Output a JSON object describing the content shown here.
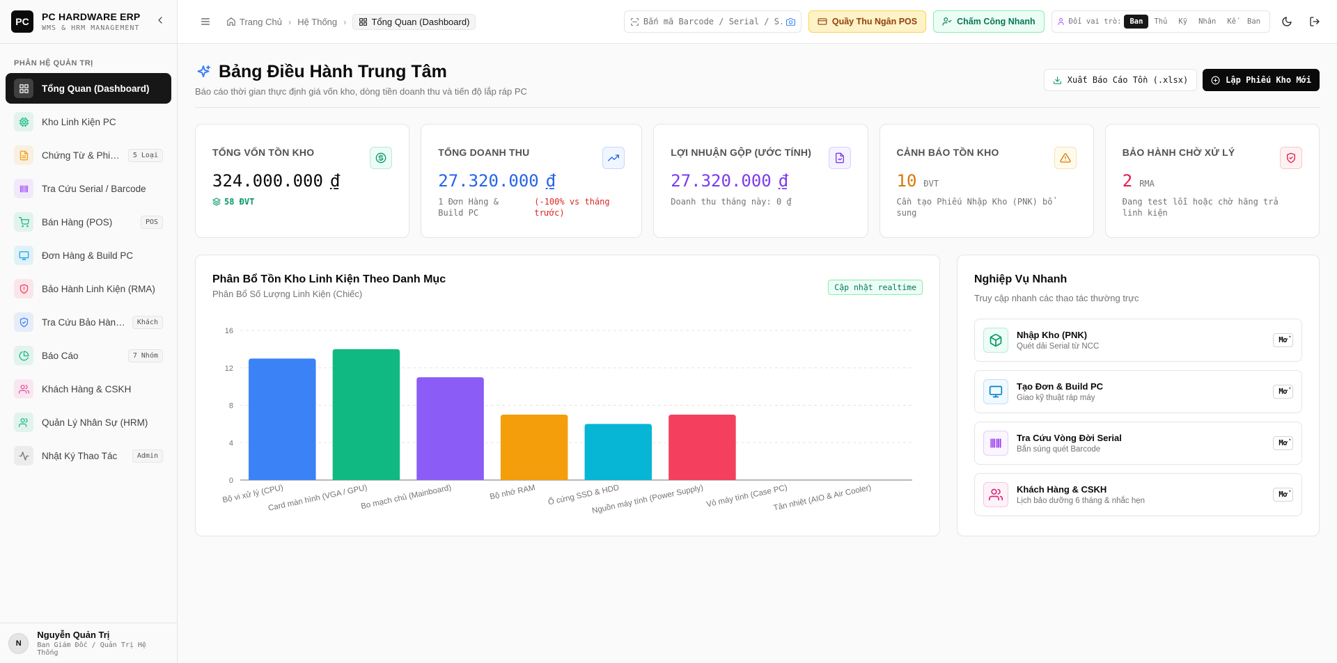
{
  "app": {
    "logo": "PC",
    "title": "PC HARDWARE ERP",
    "subtitle": "WMS & HRM MANAGEMENT"
  },
  "sidebar": {
    "section_label": "PHÂN HỆ QUẢN TRỊ",
    "items": [
      {
        "label": "Tổng Quan (Dashboard)",
        "badge": "",
        "icon": "dashboard-icon",
        "color": "#ffffff"
      },
      {
        "label": "Kho Linh Kiện PC",
        "badge": "",
        "icon": "cpu-icon",
        "color": "#10b981"
      },
      {
        "label": "Chứng Từ & Phiếu Kho",
        "badge": "5 Loại",
        "icon": "file-icon",
        "color": "#f59e0b"
      },
      {
        "label": "Tra Cứu Serial / Barcode",
        "badge": "",
        "icon": "barcode-icon",
        "color": "#a855f7"
      },
      {
        "label": "Bán Hàng (POS)",
        "badge": "POS",
        "icon": "cart-icon",
        "color": "#10b981"
      },
      {
        "label": "Đơn Hàng & Build PC",
        "badge": "",
        "icon": "monitor-icon",
        "color": "#0ea5e9"
      },
      {
        "label": "Bảo Hành Linh Kiện (RMA)",
        "badge": "",
        "icon": "shield-alert-icon",
        "color": "#f43f5e"
      },
      {
        "label": "Tra Cứu Bảo Hành Khách",
        "badge": "Khách",
        "icon": "shield-check-icon",
        "color": "#3b82f6"
      },
      {
        "label": "Báo Cáo",
        "badge": "7 Nhóm",
        "icon": "pie-chart-icon",
        "color": "#10b981"
      },
      {
        "label": "Khách Hàng & CSKH",
        "badge": "",
        "icon": "users-icon",
        "color": "#ec4899"
      },
      {
        "label": "Quản Lý Nhân Sự (HRM)",
        "badge": "",
        "icon": "user-group-icon",
        "color": "#10b981"
      },
      {
        "label": "Nhật Ký Thao Tác",
        "badge": "Admin",
        "icon": "activity-icon",
        "color": "#737373"
      }
    ]
  },
  "user": {
    "initial": "N",
    "name": "Nguyễn Quản Trị",
    "role": "Ban Giám Đốc / Quản Trị Hệ Thống"
  },
  "header": {
    "breadcrumb": [
      "Trang Chủ",
      "Hệ Thống",
      "Tổng Quan (Dashboard)"
    ],
    "search_placeholder": "Bắn mã Barcode / Serial / S...",
    "pos_label": "Quầy Thu Ngân POS",
    "attendance_label": "Chấm Công Nhanh",
    "role_label": "Đổi vai trò:",
    "roles": [
      "Ban",
      "Thủ",
      "Kỹ",
      "Nhân",
      "Kế",
      "Ban"
    ],
    "active_role_index": 0
  },
  "page": {
    "title": "Bảng Điều Hành Trung Tâm",
    "subtitle": "Báo cáo thời gian thực định giá vốn kho, dòng tiền doanh thu và tiến độ lắp ráp PC",
    "export_label": "Xuất Báo Cáo Tồn (.xlsx)",
    "new_label": "Lập Phiếu Kho Mới"
  },
  "kpis": [
    {
      "label": "TỔNG VỐN TỒN KHO",
      "value": "324.000.000",
      "unit": "₫",
      "note": "58 ĐVT",
      "note_color": "#059669",
      "value_color": "#0a0a0a",
      "icon": "dollar-icon",
      "icon_color": "#059669",
      "icon_bg": "#ecfdf5"
    },
    {
      "label": "TỔNG DOANH THU",
      "value": "27.320.000",
      "unit": "₫",
      "note": "1 Đơn Hàng & Build PC",
      "note_extra": "(-100% vs tháng trước)",
      "value_color": "#2563eb",
      "icon": "trending-up-icon",
      "icon_color": "#2563eb",
      "icon_bg": "#eff6ff"
    },
    {
      "label": "LỢI NHUẬN GỘP (ƯỚC TÍNH)",
      "value": "27.320.000",
      "unit": "₫",
      "note": "Doanh thu tháng này: 0 ₫",
      "value_color": "#7c3aed",
      "icon": "file-chart-icon",
      "icon_color": "#7c3aed",
      "icon_bg": "#f5f3ff"
    },
    {
      "label": "CẢNH BÁO TỒN KHO",
      "value": "10",
      "unit": "ĐVT",
      "note": "Cần tạo Phiếu Nhập Kho (PNK) bổ sung",
      "value_color": "#d97706",
      "icon": "warning-icon",
      "icon_color": "#d97706",
      "icon_bg": "#fffbeb"
    },
    {
      "label": "BẢO HÀNH CHỜ XỬ LÝ",
      "value": "2",
      "unit": "RMA",
      "note": "Đang test lỗi hoặc chờ hãng trả linh kiện",
      "value_color": "#e11d48",
      "icon": "shield-icon",
      "icon_color": "#e11d48",
      "icon_bg": "#fff1f2"
    }
  ],
  "chart_card": {
    "title": "Phân Bổ Tồn Kho Linh Kiện Theo Danh Mục",
    "subtitle": "Phân Bổ Số Lượng Linh Kiện (Chiếc)",
    "badge": "Cập nhật realtime"
  },
  "chart_data": {
    "type": "bar",
    "categories": [
      "Bộ vi xử lý (CPU)",
      "Card màn hình (VGA / GPU)",
      "Bo mạch chủ (Mainboard)",
      "Bộ nhớ RAM",
      "Ổ cứng SSD & HDD",
      "Nguồn máy tính (Power Supply)",
      "Vỏ máy tính (Case PC)",
      "Tản nhiệt (AIO & Air Cooler)"
    ],
    "values": [
      13,
      14,
      11,
      7,
      6,
      7,
      0,
      0
    ],
    "colors": [
      "#3b82f6",
      "#10b981",
      "#8b5cf6",
      "#f59e0b",
      "#06b6d4",
      "#f43f5e",
      "#64748b",
      "#a3a3a3"
    ],
    "ylim": [
      0,
      16
    ],
    "yticks": [
      0,
      4,
      8,
      12,
      16
    ],
    "grid": true,
    "title": "",
    "xlabel": "",
    "ylabel": ""
  },
  "quick_actions": {
    "title": "Nghiệp Vụ Nhanh",
    "subtitle": "Truy cập nhanh các thao tác thường trực",
    "open_label": "Mở",
    "items": [
      {
        "title": "Nhập Kho (PNK)",
        "subtitle": "Quét dải Serial từ NCC",
        "icon": "box-icon",
        "color": "#059669",
        "bg": "#ecfdf5"
      },
      {
        "title": "Tạo Đơn & Build PC",
        "subtitle": "Giao kỹ thuật ráp máy",
        "icon": "monitor-icon",
        "color": "#0284c7",
        "bg": "#f0f9ff"
      },
      {
        "title": "Tra Cứu Vòng Đời Serial",
        "subtitle": "Bắn súng quét Barcode",
        "icon": "barcode-icon",
        "color": "#9333ea",
        "bg": "#faf5ff"
      },
      {
        "title": "Khách Hàng & CSKH",
        "subtitle": "Lịch bảo dưỡng 6 tháng & nhắc hẹn",
        "icon": "users-icon",
        "color": "#db2777",
        "bg": "#fdf2f8"
      }
    ]
  }
}
